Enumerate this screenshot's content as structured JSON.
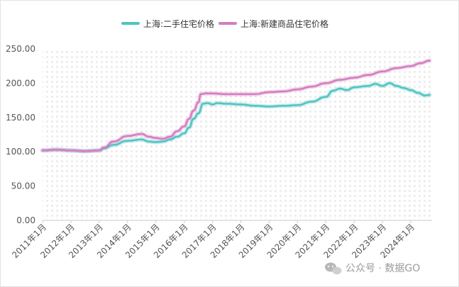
{
  "chart_data": {
    "type": "line",
    "title": "",
    "xlabel": "",
    "ylabel": "",
    "ylim": [
      0,
      250
    ],
    "yticks": [
      "0.00",
      "50.00",
      "100.00",
      "150.00",
      "200.00",
      "250.00"
    ],
    "x_tick_labels": [
      "2011年1月",
      "2012年1月",
      "2013年1月",
      "2014年1月",
      "2015年1月",
      "2016年1月",
      "2017年1月",
      "2018年1月",
      "2019年1月",
      "2020年1月",
      "2021年1月",
      "2022年1月",
      "2023年1月",
      "2024年1月"
    ],
    "legend_position": "top-center",
    "grid": "dotted background",
    "series": [
      {
        "name": "上海:二手住宅价格",
        "color": "#4fc4c4",
        "points": [
          [
            "2011-01",
            102
          ],
          [
            "2011-07",
            103
          ],
          [
            "2012-01",
            102
          ],
          [
            "2012-07",
            101
          ],
          [
            "2013-01",
            102
          ],
          [
            "2013-03",
            105
          ],
          [
            "2013-07",
            110
          ],
          [
            "2014-01",
            116
          ],
          [
            "2014-07",
            118
          ],
          [
            "2014-10",
            115
          ],
          [
            "2015-01",
            114
          ],
          [
            "2015-04",
            115
          ],
          [
            "2015-07",
            118
          ],
          [
            "2015-10",
            122
          ],
          [
            "2016-01",
            127
          ],
          [
            "2016-03",
            135
          ],
          [
            "2016-05",
            148
          ],
          [
            "2016-07",
            156
          ],
          [
            "2016-09",
            170
          ],
          [
            "2016-11",
            171
          ],
          [
            "2017-01",
            169
          ],
          [
            "2017-03",
            171
          ],
          [
            "2017-07",
            170
          ],
          [
            "2018-01",
            169
          ],
          [
            "2018-07",
            167
          ],
          [
            "2019-01",
            166
          ],
          [
            "2019-07",
            167
          ],
          [
            "2020-01",
            168
          ],
          [
            "2020-07",
            173
          ],
          [
            "2021-01",
            180
          ],
          [
            "2021-04",
            189
          ],
          [
            "2021-07",
            192
          ],
          [
            "2021-10",
            190
          ],
          [
            "2022-01",
            194
          ],
          [
            "2022-07",
            196
          ],
          [
            "2022-10",
            199
          ],
          [
            "2023-01",
            196
          ],
          [
            "2023-04",
            200
          ],
          [
            "2023-07",
            196
          ],
          [
            "2023-10",
            193
          ],
          [
            "2024-01",
            190
          ],
          [
            "2024-04",
            186
          ],
          [
            "2024-07",
            182
          ],
          [
            "2024-09",
            183
          ]
        ]
      },
      {
        "name": "上海:新建商品住宅价格",
        "color": "#d47cc0",
        "points": [
          [
            "2011-01",
            102
          ],
          [
            "2011-07",
            103
          ],
          [
            "2012-01",
            102
          ],
          [
            "2012-07",
            101
          ],
          [
            "2013-01",
            102
          ],
          [
            "2013-03",
            106
          ],
          [
            "2013-07",
            115
          ],
          [
            "2014-01",
            123
          ],
          [
            "2014-07",
            126
          ],
          [
            "2014-10",
            122
          ],
          [
            "2015-01",
            120
          ],
          [
            "2015-04",
            119
          ],
          [
            "2015-07",
            122
          ],
          [
            "2015-10",
            130
          ],
          [
            "2016-01",
            137
          ],
          [
            "2016-03",
            148
          ],
          [
            "2016-05",
            160
          ],
          [
            "2016-07",
            172
          ],
          [
            "2016-08",
            184
          ],
          [
            "2016-10",
            185
          ],
          [
            "2017-01",
            185
          ],
          [
            "2017-07",
            184
          ],
          [
            "2018-01",
            184
          ],
          [
            "2018-07",
            184
          ],
          [
            "2019-01",
            187
          ],
          [
            "2019-07",
            188
          ],
          [
            "2020-01",
            191
          ],
          [
            "2020-07",
            195
          ],
          [
            "2021-01",
            200
          ],
          [
            "2021-07",
            205
          ],
          [
            "2022-01",
            208
          ],
          [
            "2022-07",
            212
          ],
          [
            "2023-01",
            217
          ],
          [
            "2023-07",
            222
          ],
          [
            "2024-01",
            225
          ],
          [
            "2024-05",
            229
          ],
          [
            "2024-09",
            233
          ]
        ]
      }
    ]
  },
  "watermark": {
    "text": "公众号 · 数据GO",
    "icon": "wechat-icon"
  }
}
